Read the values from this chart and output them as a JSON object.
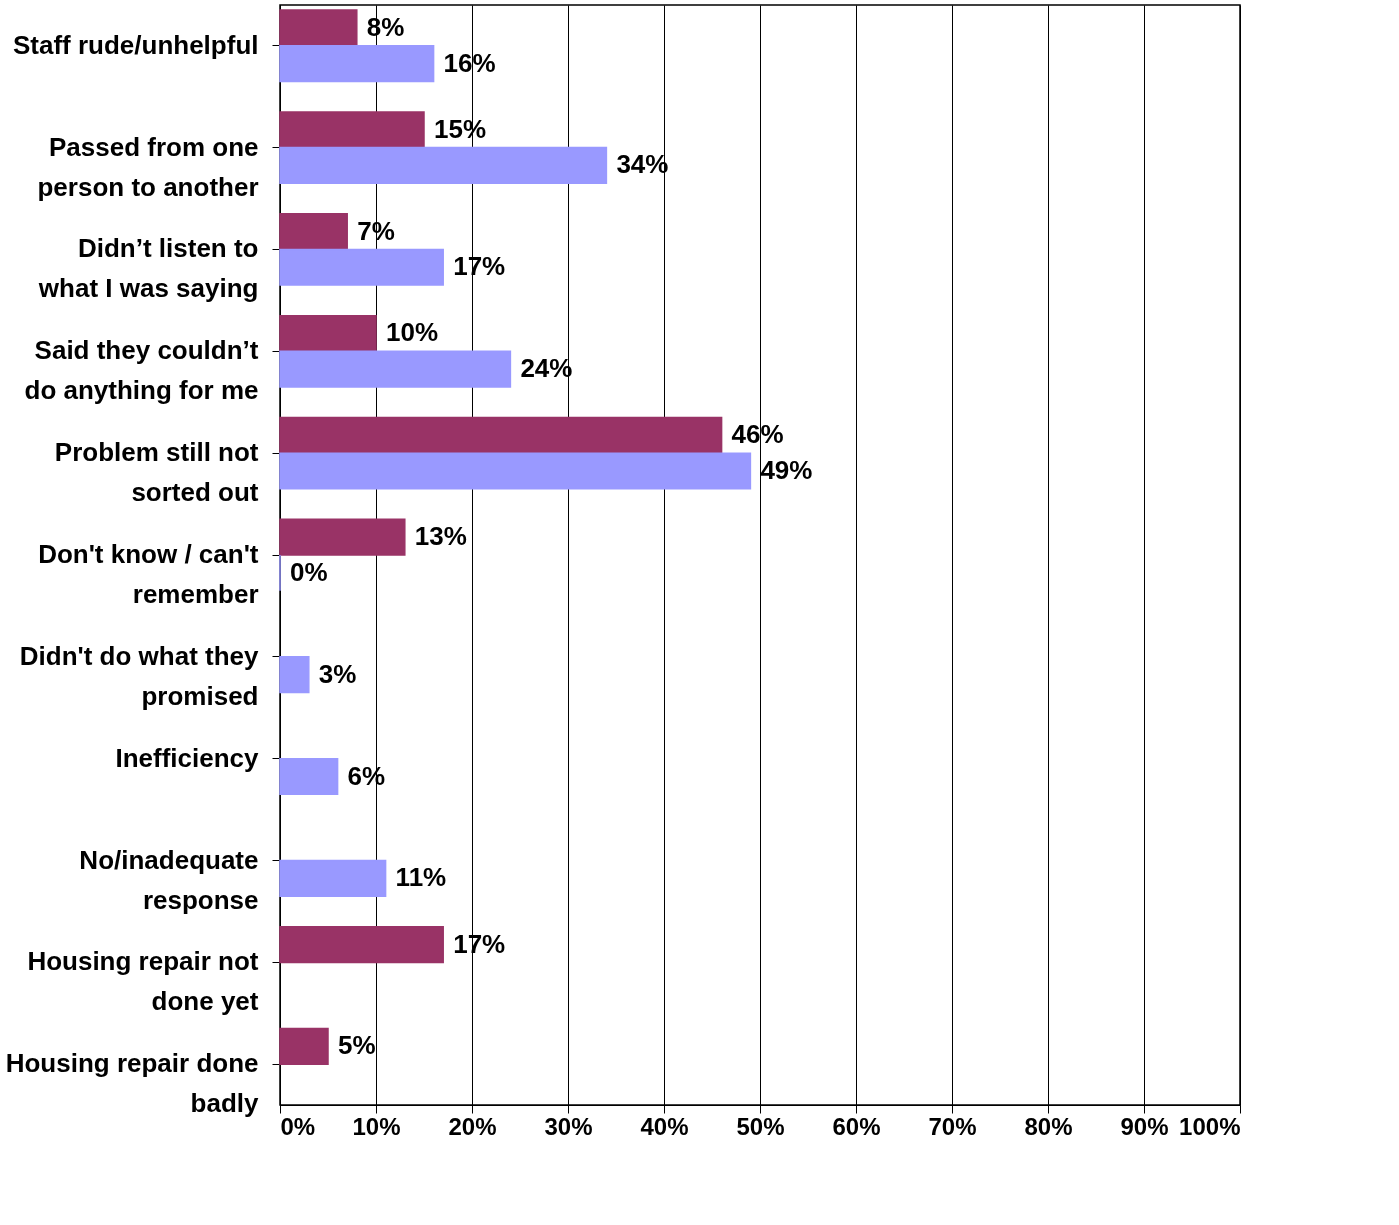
{
  "chart_data": {
    "type": "bar",
    "orientation": "horizontal",
    "categories": [
      "Staff rude/unhelpful",
      "Passed from one person to another",
      "Didn’t listen to what I was saying",
      "Said they couldn’t do anything for me",
      "Problem still not sorted out",
      "Don't know / can't remember",
      "Didn't do what they promised",
      "Inefficiency",
      "No/inadequate response",
      "Housing repair not done yet",
      "Housing repair done badly"
    ],
    "series": [
      {
        "color": "#993366",
        "values": [
          8,
          15,
          7,
          10,
          46,
          13,
          null,
          null,
          null,
          17,
          5
        ],
        "value_labels": [
          "8%",
          "15%",
          "7%",
          "10%",
          "46%",
          "13%",
          null,
          null,
          null,
          "17%",
          "5%"
        ]
      },
      {
        "color": "#9999ff",
        "values": [
          16,
          34,
          17,
          24,
          49,
          0,
          3,
          6,
          11,
          null,
          null
        ],
        "value_labels": [
          "16%",
          "34%",
          "17%",
          "24%",
          "49%",
          "0%",
          "3%",
          "6%",
          "11%",
          null,
          null
        ]
      }
    ],
    "xlim": [
      0,
      100
    ],
    "xticks": [
      {
        "value": 0,
        "label": "0%"
      },
      {
        "value": 10,
        "label": "10%"
      },
      {
        "value": 20,
        "label": "20%"
      },
      {
        "value": 30,
        "label": "30%"
      },
      {
        "value": 40,
        "label": "40%"
      },
      {
        "value": 50,
        "label": "50%"
      },
      {
        "value": 60,
        "label": "60%"
      },
      {
        "value": 70,
        "label": "70%"
      },
      {
        "value": 80,
        "label": "80%"
      },
      {
        "value": 90,
        "label": "90%"
      },
      {
        "value": 100,
        "label": "100%"
      }
    ],
    "grid": "x"
  }
}
